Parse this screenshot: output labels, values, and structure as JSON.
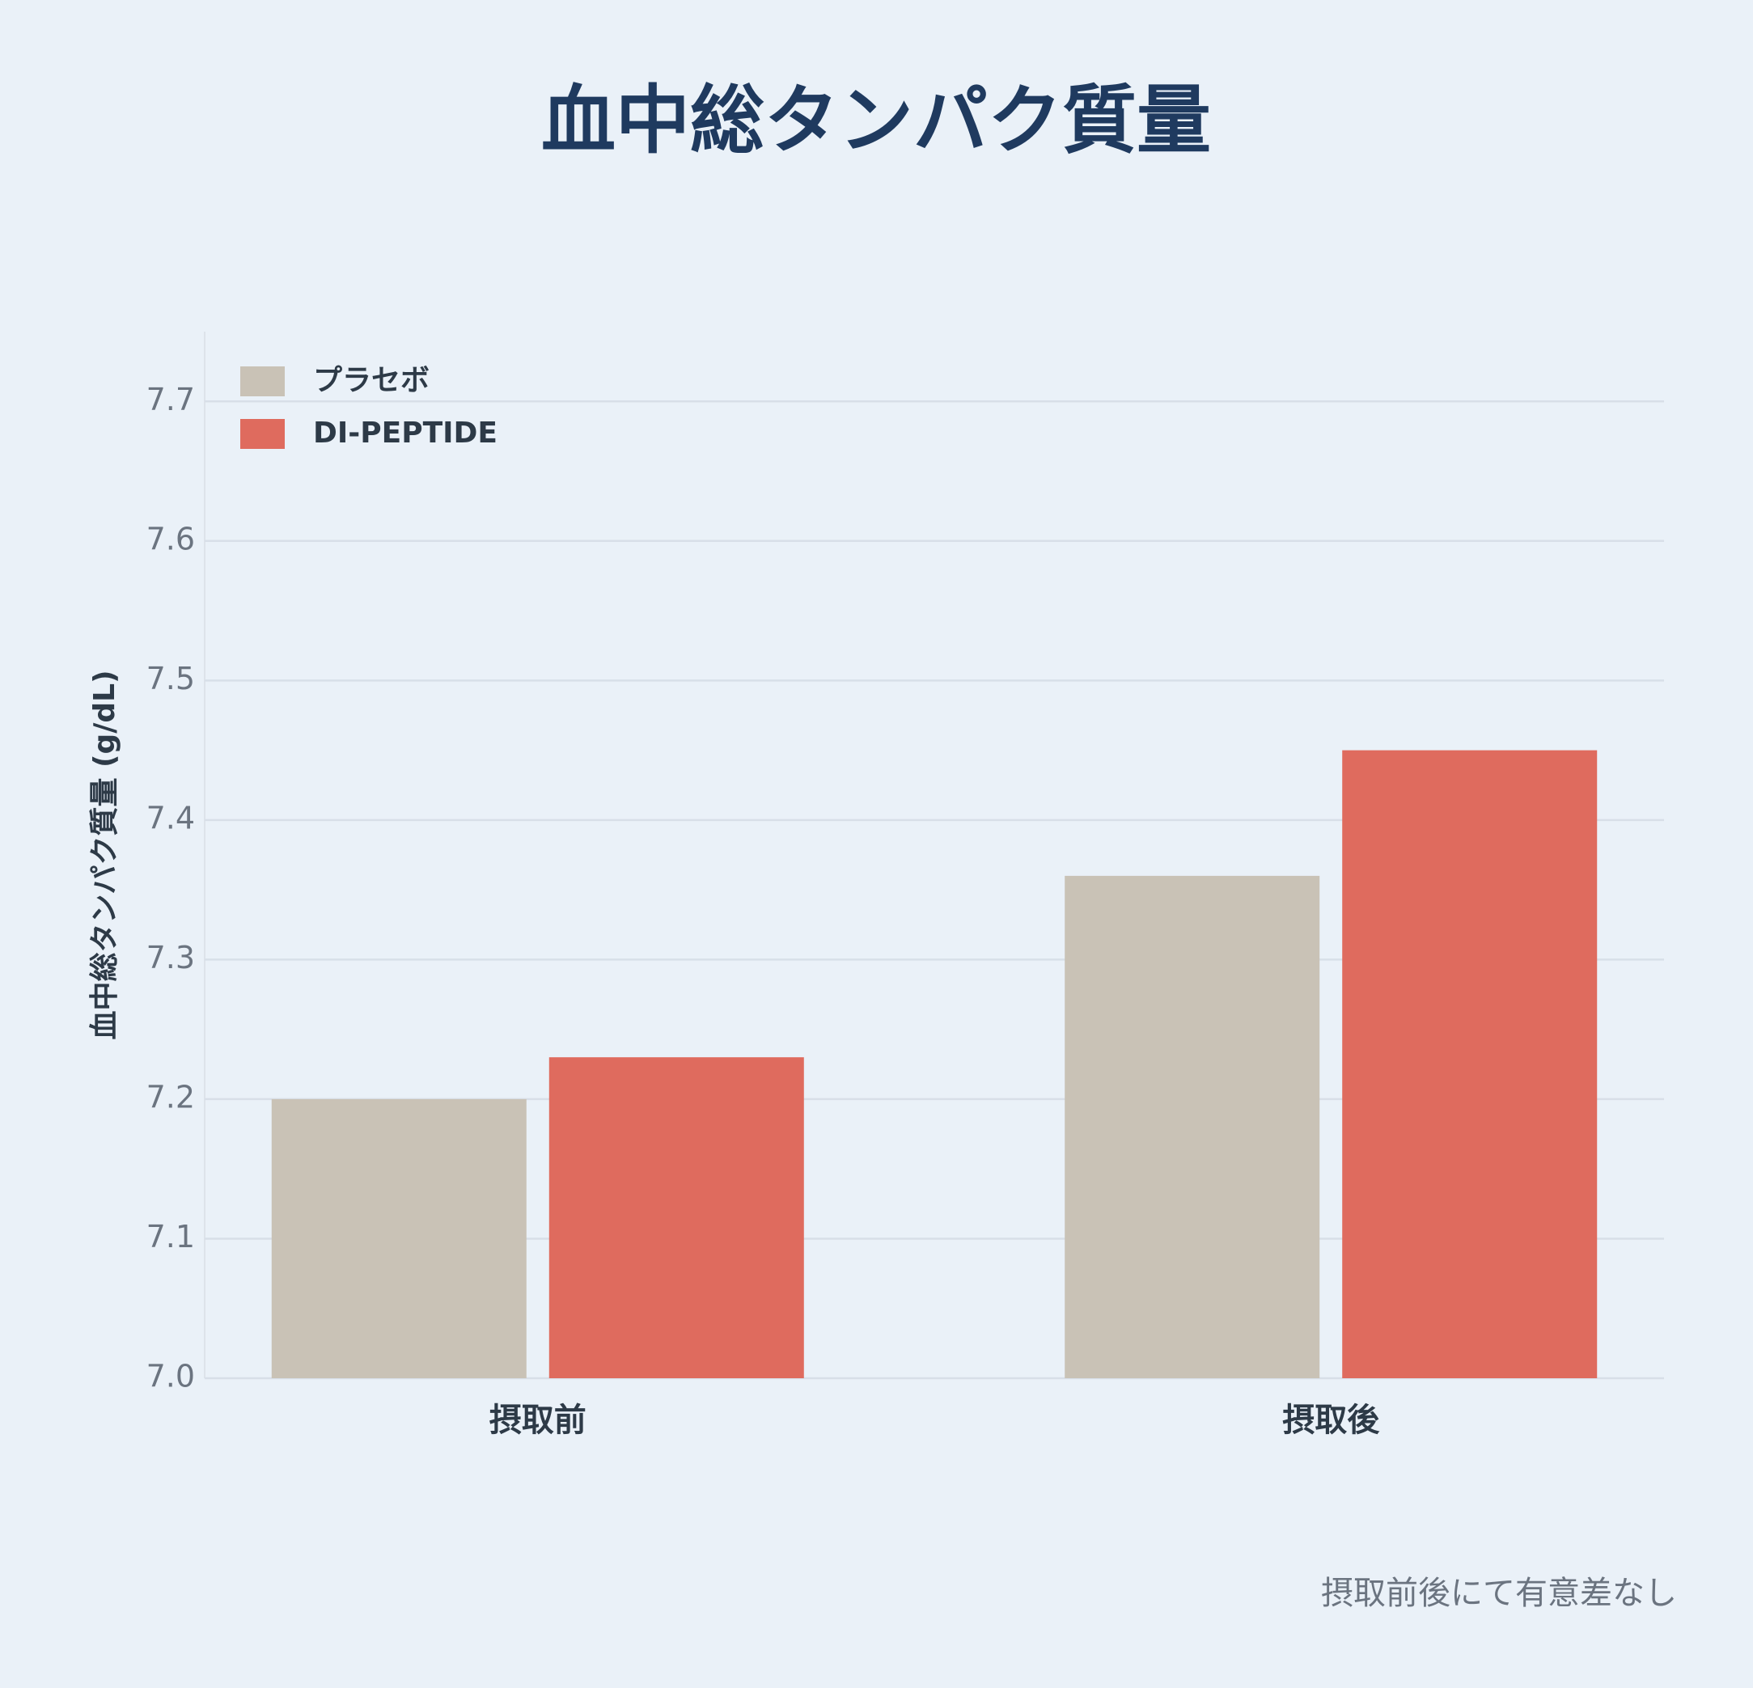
{
  "chart_data": {
    "type": "bar",
    "title": "血中総タンパク質量",
    "y_label": "血中総タンパク質量 (g/dL)",
    "annotation": "摂取前後にて有意差なし",
    "categories": [
      "摂取前",
      "摂取後"
    ],
    "series": [
      {
        "name": "プラセボ",
        "color": "#c9c2b6",
        "values": [
          7.2,
          7.36
        ]
      },
      {
        "name": "DI-PEPTIDE",
        "color": "#df6b5e",
        "values": [
          7.23,
          7.45
        ]
      }
    ],
    "ylim": [
      7.0,
      7.75
    ],
    "yticks": [
      {
        "value": 7.0,
        "label": "7.0"
      },
      7.1,
      7.2,
      7.3,
      7.4,
      7.5,
      7.6,
      7.7
    ],
    "grid": true,
    "legend": "top-left"
  }
}
